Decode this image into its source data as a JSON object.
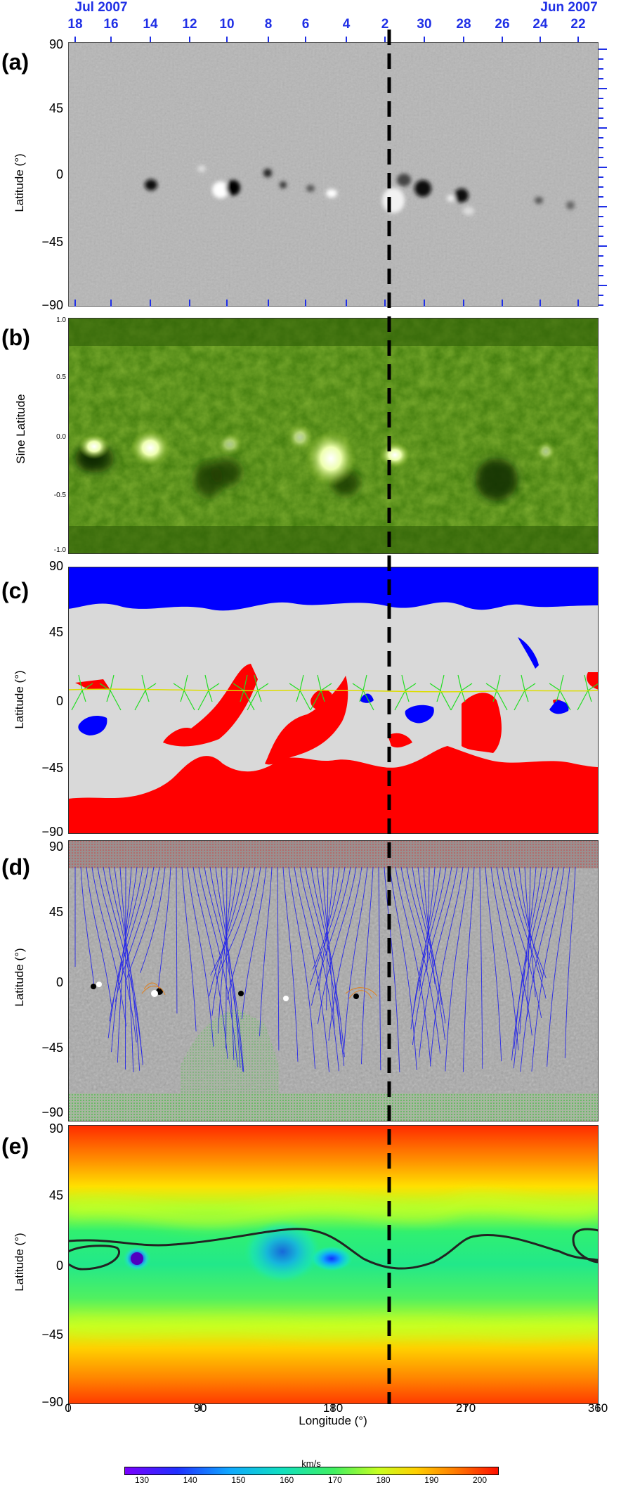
{
  "top_axis": {
    "left_label": "Jul 2007",
    "right_label": "Jun 2007",
    "day_labels": [
      "18",
      "16",
      "14",
      "12",
      "10",
      "8",
      "6",
      "4",
      "2",
      "30",
      "28",
      "26",
      "24",
      "22"
    ]
  },
  "panels": [
    {
      "letter": "(a)",
      "ylabel": "Latitude (°)",
      "yticks": [
        "90",
        "45",
        "0",
        "−45",
        "−90"
      ]
    },
    {
      "letter": "(b)",
      "ylabel": "Sine Latitude",
      "yticks": [
        "1.0",
        "0.5",
        "0.0",
        "-0.5",
        "-1.0"
      ]
    },
    {
      "letter": "(c)",
      "ylabel": "Latitude (°)",
      "yticks": [
        "90",
        "45",
        "0",
        "−45",
        "−90"
      ]
    },
    {
      "letter": "(d)",
      "ylabel": "Latitude (°)",
      "yticks": [
        "90",
        "45",
        "0",
        "−45",
        "−90"
      ]
    },
    {
      "letter": "(e)",
      "ylabel": "Latitude (°)",
      "yticks": [
        "90",
        "45",
        "0",
        "−45",
        "−90"
      ]
    }
  ],
  "x_axis": {
    "label": "Longitude (°)",
    "ticks": [
      "0",
      "90",
      "180",
      "270",
      "360"
    ]
  },
  "colorbar": {
    "unit": "km/s",
    "ticks": [
      "130",
      "140",
      "150",
      "160",
      "170",
      "180",
      "190",
      "200"
    ]
  },
  "colors": {
    "blue_axis": "#1f2fe6",
    "red": "#ff0000",
    "blue": "#0000ff",
    "gray": "#d9d9d9",
    "green": "#22cc22"
  }
}
